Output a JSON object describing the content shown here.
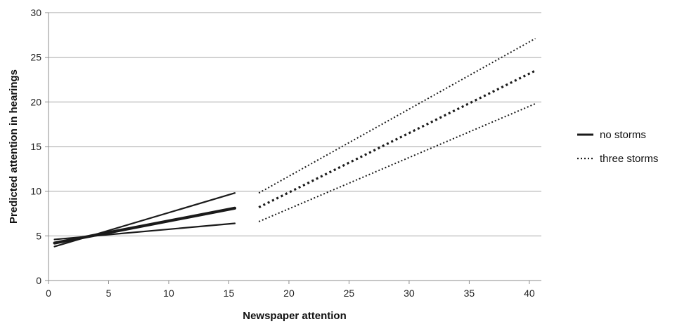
{
  "chart_data": {
    "type": "line",
    "title": "",
    "xlabel": "Newspaper attention",
    "ylabel": "Predicted attention in hearings",
    "xlim": [
      0,
      41
    ],
    "ylim": [
      0,
      30
    ],
    "x_ticks": [
      0,
      5,
      10,
      15,
      20,
      25,
      30,
      35,
      40
    ],
    "y_ticks": [
      0,
      5,
      10,
      15,
      20,
      25,
      30
    ],
    "grid": "horizontal",
    "legend_position": "right",
    "legend": [
      {
        "label": "no storms",
        "style": "solid"
      },
      {
        "label": "three storms",
        "style": "dotted"
      }
    ],
    "series": [
      {
        "name": "no storms",
        "role": "estimate",
        "style": "solid",
        "x": [
          0.5,
          15.5
        ],
        "y": [
          4.2,
          8.1
        ]
      },
      {
        "name": "no storms",
        "role": "upper",
        "style": "solid",
        "x": [
          0.5,
          15.5
        ],
        "y": [
          3.8,
          9.8
        ]
      },
      {
        "name": "no storms",
        "role": "lower",
        "style": "solid",
        "x": [
          0.5,
          15.5
        ],
        "y": [
          4.6,
          6.4
        ]
      },
      {
        "name": "three storms",
        "role": "estimate",
        "style": "dotted",
        "x": [
          17.5,
          40.5
        ],
        "y": [
          8.2,
          23.5
        ]
      },
      {
        "name": "three storms",
        "role": "upper",
        "style": "dotted",
        "x": [
          17.5,
          40.5
        ],
        "y": [
          9.8,
          27.1
        ]
      },
      {
        "name": "three storms",
        "role": "lower",
        "style": "dotted",
        "x": [
          17.5,
          40.5
        ],
        "y": [
          6.6,
          19.8
        ]
      }
    ]
  }
}
